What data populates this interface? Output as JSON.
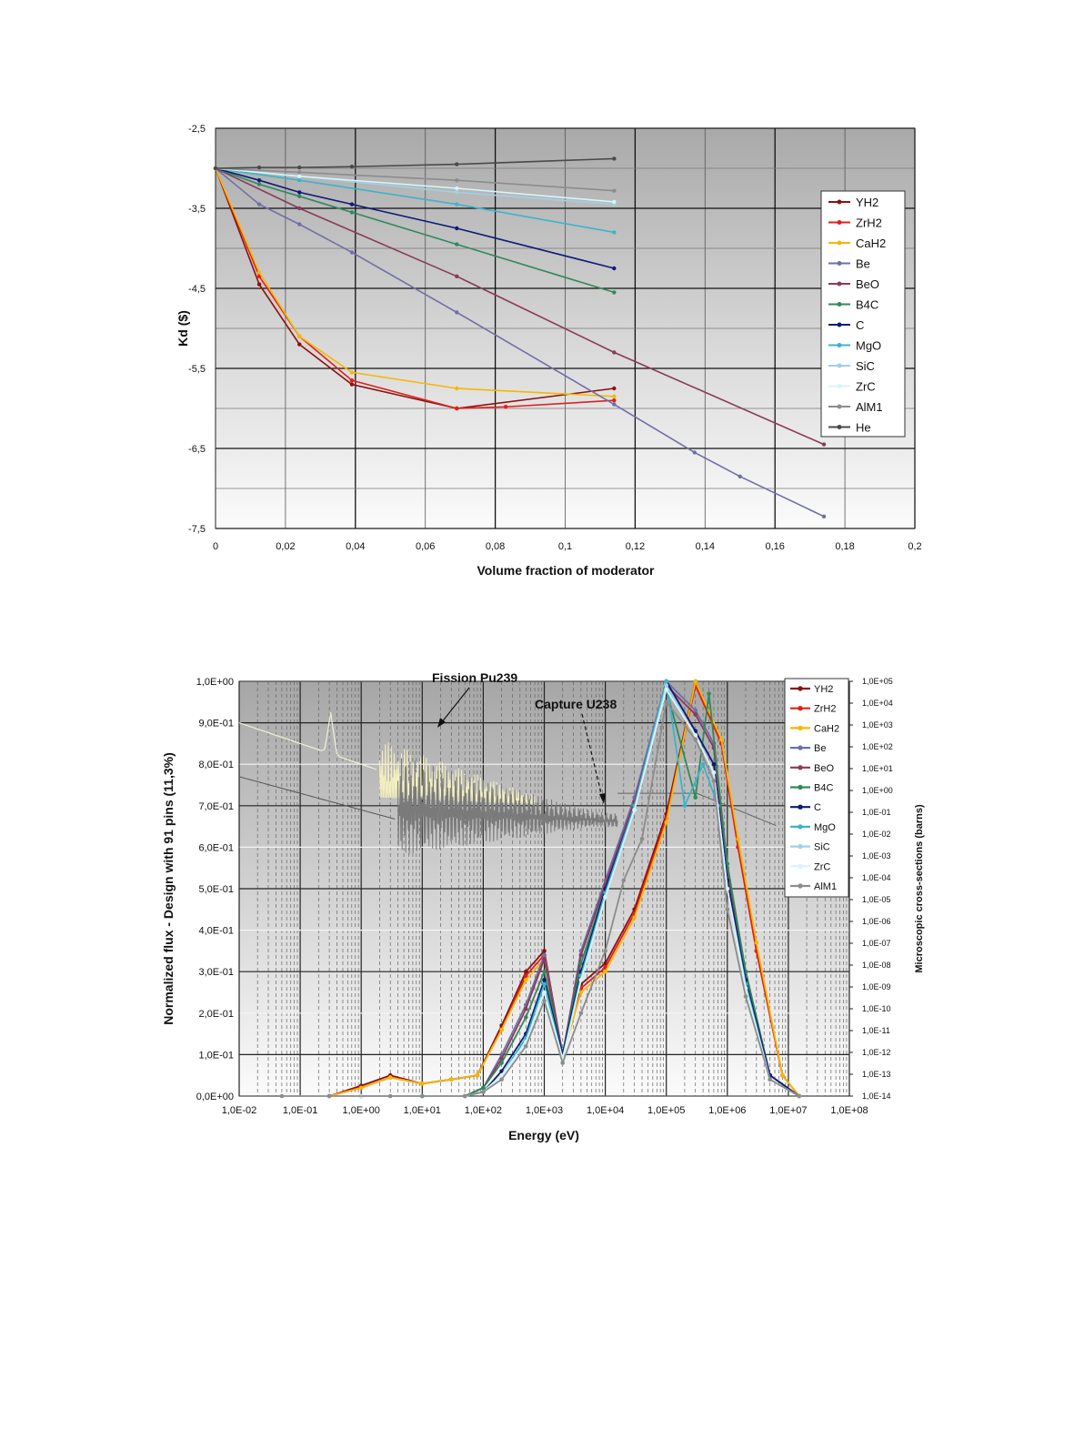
{
  "colors": {
    "YH2": "#8b1010",
    "ZrH2": "#e0201a",
    "CaH2": "#f5b800",
    "Be": "#6f6fa6",
    "BeO": "#8a3a5a",
    "B4C": "#2f8a5a",
    "C": "#0c1a7a",
    "MgO": "#3ab4cc",
    "SiC": "#9fd0ea",
    "ZrC": "#d8f4f8",
    "AlM1": "#8c8c8c",
    "He": "#4a4a4a"
  },
  "chart_data": [
    {
      "type": "line",
      "xlabel": "Volume fraction of moderator",
      "ylabel": "Kd ($)",
      "xlim": [
        0,
        0.2
      ],
      "ylim": [
        -7.5,
        -2.5
      ],
      "xticks": [
        "0",
        "0,02",
        "0,04",
        "0,06",
        "0,08",
        "0,1",
        "0,12",
        "0,14",
        "0,16",
        "0,18",
        "0,2"
      ],
      "yticks": [
        "-2,5",
        "-3,5",
        "-4,5",
        "-5,5",
        "-6,5",
        "-7,5"
      ],
      "legend_position": "right",
      "grid": true,
      "series": [
        {
          "name": "YH2",
          "key": "YH2",
          "x": [
            0,
            0.0125,
            0.024,
            0.039,
            0.069,
            0.114
          ],
          "y": [
            -3.0,
            -4.45,
            -5.2,
            -5.7,
            -6.0,
            -5.75
          ]
        },
        {
          "name": "ZrH2",
          "key": "ZrH2",
          "x": [
            0,
            0.0125,
            0.024,
            0.039,
            0.069,
            0.083,
            0.114
          ],
          "y": [
            -3.0,
            -4.35,
            -5.1,
            -5.65,
            -6.0,
            -5.98,
            -5.9
          ]
        },
        {
          "name": "CaH2",
          "key": "CaH2",
          "x": [
            0,
            0.0125,
            0.024,
            0.039,
            0.069,
            0.114
          ],
          "y": [
            -3.0,
            -4.3,
            -5.1,
            -5.55,
            -5.75,
            -5.85
          ]
        },
        {
          "name": "Be",
          "key": "Be",
          "x": [
            0,
            0.0125,
            0.024,
            0.039,
            0.069,
            0.114,
            0.137,
            0.15,
            0.174
          ],
          "y": [
            -3.0,
            -3.45,
            -3.7,
            -4.05,
            -4.8,
            -5.95,
            -6.55,
            -6.85,
            -7.35
          ]
        },
        {
          "name": "BeO",
          "key": "BeO",
          "x": [
            0,
            0.024,
            0.069,
            0.114,
            0.174
          ],
          "y": [
            -3.0,
            -3.5,
            -4.35,
            -5.3,
            -6.45
          ]
        },
        {
          "name": "B4C",
          "key": "B4C",
          "x": [
            0,
            0.0125,
            0.024,
            0.039,
            0.069,
            0.114
          ],
          "y": [
            -3.0,
            -3.2,
            -3.35,
            -3.55,
            -3.95,
            -4.55
          ]
        },
        {
          "name": "C",
          "key": "C",
          "x": [
            0,
            0.0125,
            0.024,
            0.039,
            0.069,
            0.114
          ],
          "y": [
            -3.0,
            -3.15,
            -3.3,
            -3.45,
            -3.75,
            -4.25
          ]
        },
        {
          "name": "MgO",
          "key": "MgO",
          "x": [
            0,
            0.024,
            0.069,
            0.114
          ],
          "y": [
            -3.0,
            -3.15,
            -3.45,
            -3.8
          ]
        },
        {
          "name": "SiC",
          "key": "SiC",
          "x": [
            0,
            0.024,
            0.069,
            0.114
          ],
          "y": [
            -3.0,
            -3.1,
            -3.3,
            -3.45
          ]
        },
        {
          "name": "ZrC",
          "key": "ZrC",
          "x": [
            0,
            0.024,
            0.069,
            0.114
          ],
          "y": [
            -3.0,
            -3.1,
            -3.25,
            -3.42
          ]
        },
        {
          "name": "AlM1",
          "key": "AlM1",
          "x": [
            0,
            0.024,
            0.069,
            0.114
          ],
          "y": [
            -3.0,
            -3.05,
            -3.15,
            -3.28
          ]
        },
        {
          "name": "He",
          "key": "He",
          "x": [
            0,
            0.0125,
            0.024,
            0.039,
            0.069,
            0.114
          ],
          "y": [
            -3.0,
            -2.99,
            -2.99,
            -2.98,
            -2.95,
            -2.88
          ]
        }
      ]
    },
    {
      "type": "line",
      "xlabel": "Energy (eV)",
      "ylabel": "Normalized flux - Design with 91 pins (11,3%)",
      "y2label": "Microscopic cross-sections (barns)",
      "x_scale": "log",
      "xlim": [
        0.01,
        100000000
      ],
      "ylim": [
        0,
        1
      ],
      "xticks": [
        "1,0E-02",
        "1,0E-01",
        "1,0E+00",
        "1,0E+01",
        "1,0E+02",
        "1,0E+03",
        "1,0E+04",
        "1,0E+05",
        "1,0E+06",
        "1,0E+07",
        "1,0E+08"
      ],
      "yticks": [
        "0,0E+00",
        "1,0E-01",
        "2,0E-01",
        "3,0E-01",
        "4,0E-01",
        "5,0E-01",
        "6,0E-01",
        "7,0E-01",
        "8,0E-01",
        "9,0E-01",
        "1,0E+00"
      ],
      "y2ticks": [
        "1,0E+05",
        "1,0E+04",
        "1,0E+03",
        "1,0E+02",
        "1,0E+01",
        "1,0E+00",
        "1,0E-01",
        "1,0E-02",
        "1,0E-03",
        "1,0E-04",
        "1,0E-05",
        "1,0E-06",
        "1,0E-07",
        "1,0E-08",
        "1,0E-09",
        "1,0E-10",
        "1,0E-11",
        "1,0E-12",
        "1,0E-13",
        "1,0E-14"
      ],
      "annotations": [
        "Fission Pu239",
        "Capture U238"
      ],
      "legend_position": "right",
      "grid": true,
      "series": [
        {
          "name": "YH2",
          "key": "YH2",
          "x": [
            0.3,
            1,
            3,
            10,
            30,
            80,
            200,
            500,
            1000,
            2000,
            4000,
            10000,
            30000,
            100000,
            300000,
            800000,
            1500000,
            3000000,
            8000000,
            15000000
          ],
          "y": [
            0,
            0.025,
            0.05,
            0.03,
            0.04,
            0.05,
            0.17,
            0.3,
            0.35,
            0.1,
            0.27,
            0.32,
            0.45,
            0.68,
            1.0,
            0.85,
            0.6,
            0.35,
            0.05,
            0
          ]
        },
        {
          "name": "ZrH2",
          "key": "ZrH2",
          "x": [
            0.3,
            1,
            3,
            10,
            30,
            80,
            200,
            500,
            1000,
            2000,
            4000,
            10000,
            30000,
            100000,
            300000,
            800000,
            1500000,
            3000000,
            8000000,
            15000000
          ],
          "y": [
            0,
            0.02,
            0.045,
            0.03,
            0.04,
            0.05,
            0.16,
            0.29,
            0.34,
            0.1,
            0.26,
            0.31,
            0.44,
            0.67,
            0.99,
            0.85,
            0.6,
            0.35,
            0.05,
            0
          ]
        },
        {
          "name": "CaH2",
          "key": "CaH2",
          "x": [
            0.3,
            1,
            3,
            10,
            30,
            80,
            200,
            500,
            1000,
            2000,
            4000,
            10000,
            30000,
            100000,
            300000,
            800000,
            1500000,
            3000000,
            8000000,
            15000000
          ],
          "y": [
            0,
            0.02,
            0.045,
            0.03,
            0.04,
            0.05,
            0.16,
            0.28,
            0.33,
            0.1,
            0.25,
            0.3,
            0.43,
            0.66,
            1.0,
            0.86,
            0.62,
            0.37,
            0.05,
            0
          ]
        },
        {
          "name": "Be",
          "key": "Be",
          "x": [
            1,
            10,
            50,
            100,
            200,
            500,
            1000,
            2000,
            4000,
            10000,
            30000,
            100000,
            300000,
            600000,
            1000000,
            2000000,
            5000000,
            15000000
          ],
          "y": [
            0,
            0,
            0,
            0.02,
            0.1,
            0.22,
            0.34,
            0.1,
            0.35,
            0.52,
            0.72,
            1.0,
            0.93,
            0.85,
            0.55,
            0.3,
            0.05,
            0
          ]
        },
        {
          "name": "BeO",
          "key": "BeO",
          "x": [
            1,
            10,
            50,
            100,
            200,
            500,
            1000,
            2000,
            4000,
            10000,
            30000,
            100000,
            300000,
            600000,
            1000000,
            2000000,
            5000000,
            15000000
          ],
          "y": [
            0,
            0,
            0,
            0.02,
            0.09,
            0.21,
            0.33,
            0.1,
            0.34,
            0.51,
            0.71,
            0.99,
            0.92,
            0.84,
            0.54,
            0.3,
            0.05,
            0
          ]
        },
        {
          "name": "B4C",
          "key": "B4C",
          "x": [
            1,
            10,
            50,
            100,
            200,
            500,
            1000,
            2000,
            4000,
            10000,
            30000,
            100000,
            300000,
            500000,
            1000000,
            2000000,
            5000000,
            15000000
          ],
          "y": [
            0,
            0,
            0,
            0.02,
            0.08,
            0.19,
            0.3,
            0.1,
            0.32,
            0.5,
            0.7,
            0.98,
            0.72,
            0.97,
            0.56,
            0.3,
            0.05,
            0
          ]
        },
        {
          "name": "C",
          "key": "C",
          "x": [
            1,
            10,
            50,
            100,
            200,
            500,
            1000,
            2000,
            4000,
            10000,
            30000,
            100000,
            300000,
            600000,
            1000000,
            2000000,
            5000000,
            15000000
          ],
          "y": [
            0,
            0,
            0,
            0.01,
            0.06,
            0.15,
            0.28,
            0.1,
            0.3,
            0.5,
            0.7,
            1.0,
            0.88,
            0.8,
            0.52,
            0.28,
            0.05,
            0
          ]
        },
        {
          "name": "MgO",
          "key": "MgO",
          "x": [
            1,
            10,
            50,
            100,
            200,
            500,
            1000,
            2000,
            4000,
            10000,
            30000,
            100000,
            200000,
            400000,
            700000,
            1000000,
            2000000,
            5000000,
            15000000
          ],
          "y": [
            0,
            0,
            0,
            0.01,
            0.05,
            0.14,
            0.27,
            0.09,
            0.29,
            0.49,
            0.7,
            1.0,
            0.7,
            0.8,
            0.7,
            0.5,
            0.27,
            0.04,
            0
          ]
        },
        {
          "name": "SiC",
          "key": "SiC",
          "x": [
            1,
            10,
            50,
            100,
            200,
            500,
            1000,
            2000,
            4000,
            10000,
            30000,
            100000,
            300000,
            600000,
            1000000,
            2000000,
            5000000,
            15000000
          ],
          "y": [
            0,
            0,
            0,
            0.01,
            0.05,
            0.13,
            0.25,
            0.09,
            0.28,
            0.48,
            0.69,
            0.99,
            0.87,
            0.78,
            0.5,
            0.26,
            0.04,
            0
          ]
        },
        {
          "name": "ZrC",
          "key": "ZrC",
          "x": [
            1,
            10,
            50,
            100,
            200,
            500,
            1000,
            2000,
            4000,
            10000,
            30000,
            100000,
            300000,
            600000,
            1000000,
            2000000,
            5000000,
            15000000
          ],
          "y": [
            0,
            0,
            0,
            0.01,
            0.05,
            0.13,
            0.25,
            0.09,
            0.28,
            0.48,
            0.69,
            0.98,
            0.87,
            0.78,
            0.5,
            0.26,
            0.04,
            0
          ]
        },
        {
          "name": "AlM1",
          "key": "AlM1",
          "x": [
            0.05,
            0.3,
            3,
            10,
            50,
            100,
            200,
            500,
            1000,
            2000,
            4000,
            10000,
            20000,
            40000,
            100000,
            300000,
            600000,
            1000000,
            2000000,
            5000000,
            15000000
          ],
          "y": [
            0,
            0,
            0,
            0,
            0,
            0.01,
            0.04,
            0.12,
            0.23,
            0.08,
            0.2,
            0.35,
            0.52,
            0.62,
            0.95,
            0.86,
            0.76,
            0.45,
            0.24,
            0.04,
            0
          ]
        }
      ]
    }
  ]
}
